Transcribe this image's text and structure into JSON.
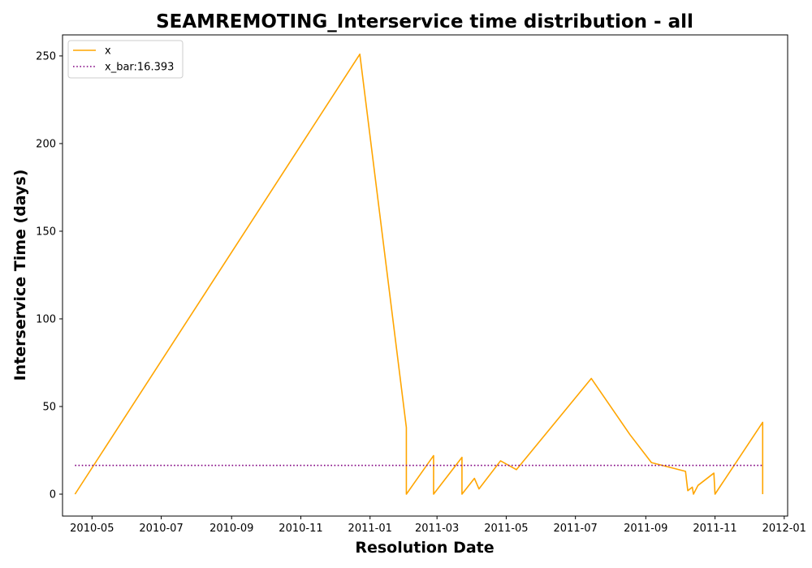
{
  "chart_data": {
    "type": "line",
    "title": "SEAMREMOTING_Interservice time distribution - all",
    "xlabel": "Resolution Date",
    "ylabel": "Interservice Time (days)",
    "x_ticks": [
      "2010-05",
      "2010-07",
      "2010-09",
      "2010-11",
      "2011-01",
      "2011-03",
      "2011-05",
      "2011-07",
      "2011-09",
      "2011-11",
      "2012-01"
    ],
    "y_ticks": [
      0,
      50,
      100,
      150,
      200,
      250
    ],
    "xlim": [
      "2010-04-05",
      "2012-01-04"
    ],
    "ylim": [
      -12.5,
      262
    ],
    "grid": false,
    "legend_position": "top-left",
    "series": [
      {
        "name": "x",
        "color": "#ffa500",
        "style": "solid",
        "x": [
          "2010-04-16",
          "2010-12-23",
          "2011-02-02",
          "2011-02-02",
          "2011-02-26",
          "2011-02-26",
          "2011-03-23",
          "2011-03-23",
          "2011-04-03",
          "2011-04-07",
          "2011-04-26",
          "2011-05-10",
          "2011-07-15",
          "2011-08-18",
          "2011-09-06",
          "2011-10-06",
          "2011-10-08",
          "2011-10-12",
          "2011-10-13",
          "2011-10-17",
          "2011-10-31",
          "2011-11-01",
          "2011-12-13",
          "2011-12-13"
        ],
        "y": [
          0,
          251,
          38,
          0,
          22,
          0,
          21,
          0,
          9,
          3,
          19,
          14,
          66,
          34,
          18,
          13,
          2,
          4,
          0,
          5,
          12,
          0,
          41,
          0
        ]
      },
      {
        "name": "x_bar:16.393",
        "color": "#800080",
        "style": "dotted",
        "x": [
          "2010-04-16",
          "2011-12-13"
        ],
        "y": [
          16.393,
          16.393
        ]
      }
    ]
  }
}
